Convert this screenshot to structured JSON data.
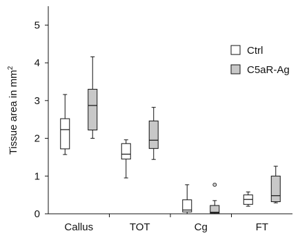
{
  "chart_data": {
    "type": "box",
    "ylabel": "Tissue area in mm",
    "ylabel_superscript": "2",
    "ylim": [
      0,
      5.5
    ],
    "yticks": [
      "0",
      "1",
      "2",
      "3",
      "4",
      "5"
    ],
    "ytick_values": [
      0,
      1,
      2,
      3,
      4,
      5
    ],
    "categories": [
      "Callus",
      "TOT",
      "Cg",
      "FT"
    ],
    "legend_position": "top-right",
    "series": [
      {
        "name": "Ctrl",
        "color": "#ffffff",
        "boxes": [
          {
            "min": 1.57,
            "q1": 1.72,
            "median": 2.23,
            "q3": 2.52,
            "max": 3.16,
            "outliers": []
          },
          {
            "min": 0.95,
            "q1": 1.45,
            "median": 1.58,
            "q3": 1.86,
            "max": 1.96,
            "outliers": []
          },
          {
            "min": 0.0,
            "q1": 0.05,
            "median": 0.1,
            "q3": 0.37,
            "max": 0.77,
            "outliers": []
          },
          {
            "min": 0.2,
            "q1": 0.25,
            "median": 0.38,
            "q3": 0.5,
            "max": 0.58,
            "outliers": []
          }
        ]
      },
      {
        "name": "C5aR-Ag",
        "color": "#c8c8c8",
        "boxes": [
          {
            "min": 2.0,
            "q1": 2.22,
            "median": 2.87,
            "q3": 3.3,
            "max": 4.16,
            "outliers": []
          },
          {
            "min": 1.44,
            "q1": 1.73,
            "median": 1.95,
            "q3": 2.46,
            "max": 2.82,
            "outliers": []
          },
          {
            "min": 0.0,
            "q1": 0.02,
            "median": 0.04,
            "q3": 0.22,
            "max": 0.35,
            "outliers": [
              0.77
            ]
          },
          {
            "min": 0.29,
            "q1": 0.32,
            "median": 0.48,
            "q3": 1.0,
            "max": 1.26,
            "outliers": []
          }
        ]
      }
    ]
  }
}
